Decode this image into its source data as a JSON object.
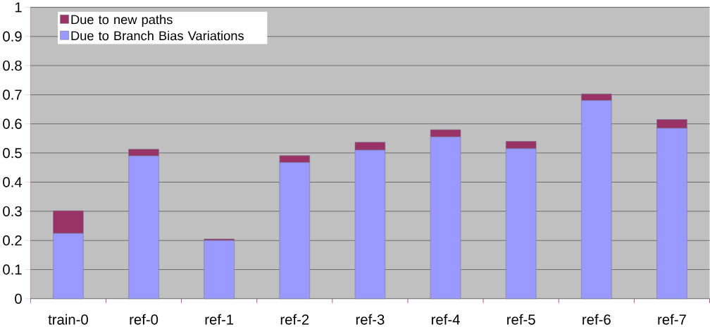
{
  "chart_data": {
    "type": "bar",
    "stacked": true,
    "categories": [
      "train-0",
      "ref-0",
      "ref-1",
      "ref-2",
      "ref-3",
      "ref-4",
      "ref-5",
      "ref-6",
      "ref-7"
    ],
    "series": [
      {
        "name": "Due to Branch Bias Variations",
        "color": "#9999ff",
        "values": [
          0.224,
          0.49,
          0.2,
          0.467,
          0.51,
          0.555,
          0.515,
          0.68,
          0.585
        ]
      },
      {
        "name": "Due to new paths",
        "color": "#993366",
        "values": [
          0.078,
          0.023,
          0.005,
          0.024,
          0.027,
          0.025,
          0.025,
          0.023,
          0.03
        ]
      }
    ],
    "ylim": [
      0,
      1
    ],
    "yticks": [
      0,
      0.1,
      0.2,
      0.3,
      0.4,
      0.5,
      0.6,
      0.7,
      0.8,
      0.9,
      1
    ],
    "grid": "y",
    "legend": "top left"
  }
}
